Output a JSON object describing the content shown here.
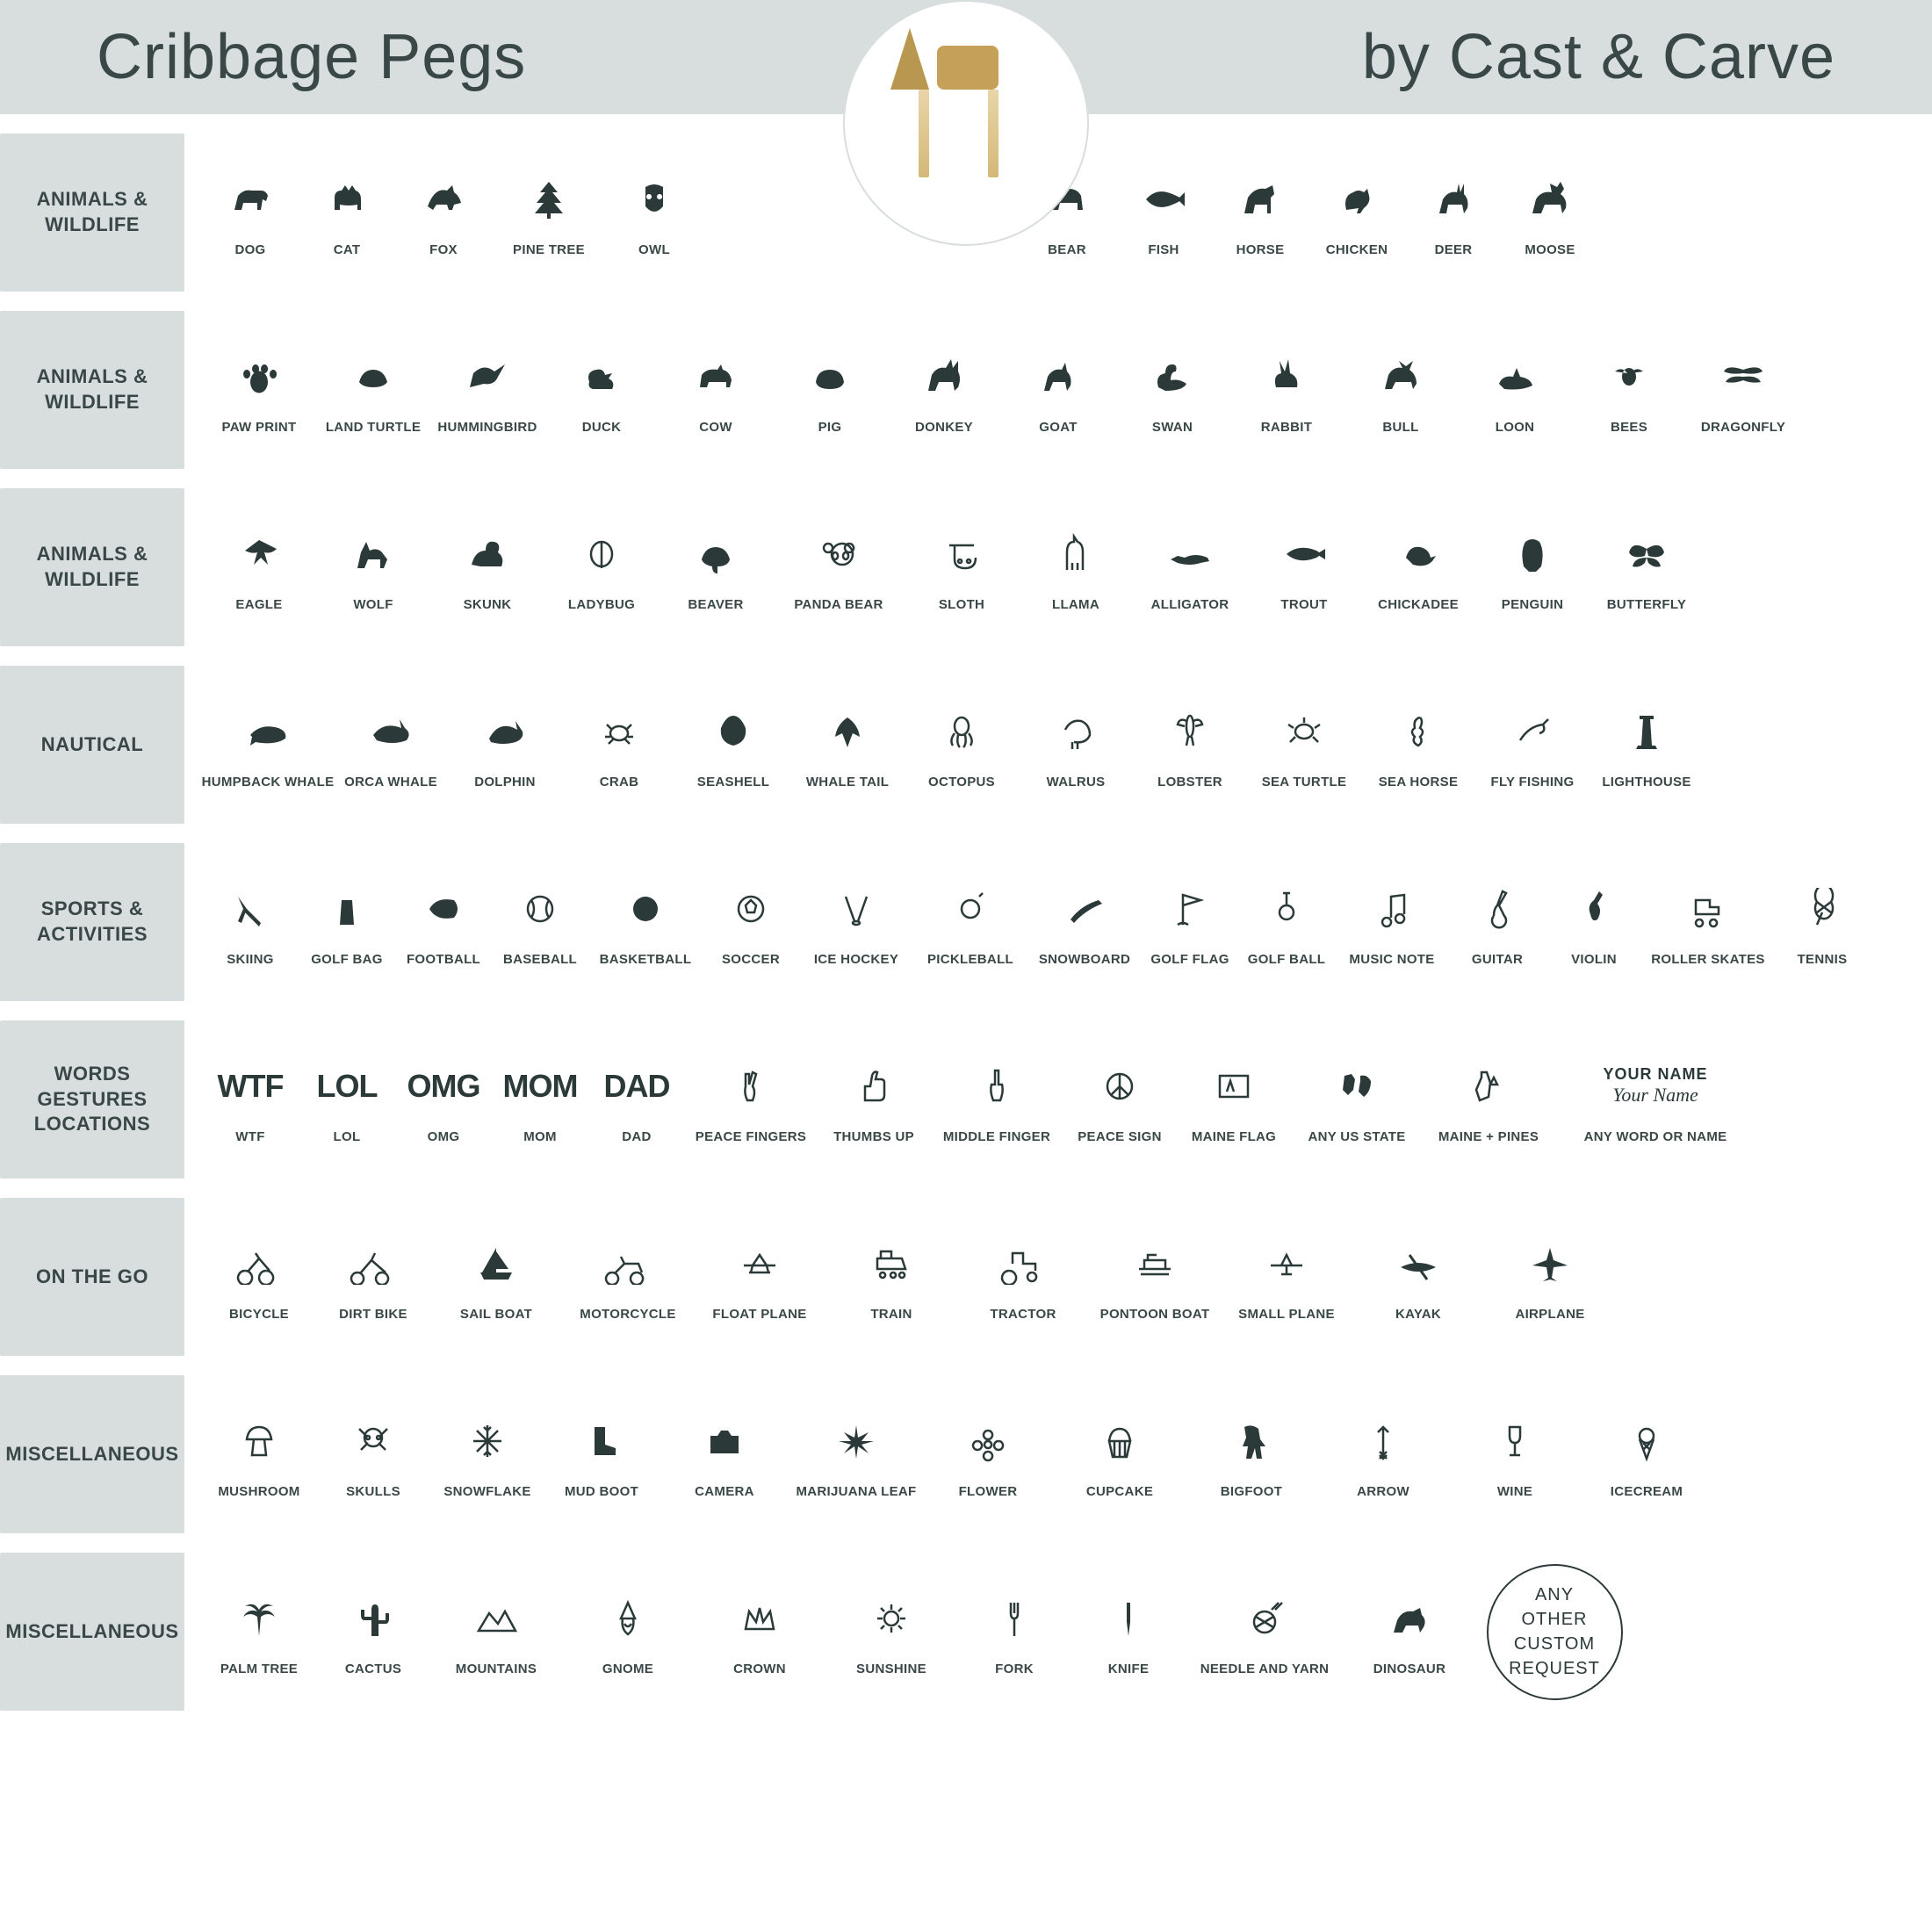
{
  "header": {
    "title": "Cribbage Pegs",
    "subtitle": "by Cast & Carve"
  },
  "colors": {
    "icon": "#2b3939",
    "band": "#d8dddd",
    "text": "#3a4747"
  },
  "rows": [
    {
      "label": "ANIMALS & WILDLIFE",
      "split_gap": true,
      "items_left": [
        {
          "label": "DOG",
          "icon": "dog",
          "w": "w-narrow"
        },
        {
          "label": "CAT",
          "icon": "cat",
          "w": "w-narrow"
        },
        {
          "label": "FOX",
          "icon": "fox",
          "w": "w-narrow"
        },
        {
          "label": "PINE TREE",
          "icon": "pinetree",
          "w": "w-std"
        },
        {
          "label": "OWL",
          "icon": "owl",
          "w": "w-narrow"
        }
      ],
      "items_right": [
        {
          "label": "BEAR",
          "icon": "bear",
          "w": "w-narrow"
        },
        {
          "label": "FISH",
          "icon": "fish",
          "w": "w-narrow"
        },
        {
          "label": "HORSE",
          "icon": "horse",
          "w": "w-narrow"
        },
        {
          "label": "CHICKEN",
          "icon": "chicken",
          "w": "w-narrow"
        },
        {
          "label": "DEER",
          "icon": "deer",
          "w": "w-narrow"
        },
        {
          "label": "MOOSE",
          "icon": "moose",
          "w": "w-narrow"
        }
      ]
    },
    {
      "label": "ANIMALS & WILDLIFE",
      "items": [
        {
          "label": "PAW PRINT",
          "icon": "paw",
          "w": "w-std"
        },
        {
          "label": "LAND TURTLE",
          "icon": "turtle",
          "w": "w-std"
        },
        {
          "label": "HUMMINGBIRD",
          "icon": "hummingbird",
          "w": "w-std"
        },
        {
          "label": "DUCK",
          "icon": "duck",
          "w": "w-std"
        },
        {
          "label": "COW",
          "icon": "cow",
          "w": "w-std"
        },
        {
          "label": "PIG",
          "icon": "pig",
          "w": "w-std"
        },
        {
          "label": "DONKEY",
          "icon": "donkey",
          "w": "w-std"
        },
        {
          "label": "GOAT",
          "icon": "goat",
          "w": "w-std"
        },
        {
          "label": "SWAN",
          "icon": "swan",
          "w": "w-std"
        },
        {
          "label": "RABBIT",
          "icon": "rabbit",
          "w": "w-std"
        },
        {
          "label": "BULL",
          "icon": "bull",
          "w": "w-std"
        },
        {
          "label": "LOON",
          "icon": "loon",
          "w": "w-std"
        },
        {
          "label": "BEES",
          "icon": "bee",
          "w": "w-std"
        },
        {
          "label": "DRAGONFLY",
          "icon": "dragonfly",
          "w": "w-std"
        }
      ]
    },
    {
      "label": "ANIMALS & WILDLIFE",
      "items": [
        {
          "label": "EAGLE",
          "icon": "eagle",
          "w": "w-std"
        },
        {
          "label": "WOLF",
          "icon": "wolf",
          "w": "w-std"
        },
        {
          "label": "SKUNK",
          "icon": "skunk",
          "w": "w-std"
        },
        {
          "label": "LADYBUG",
          "icon": "ladybug",
          "w": "w-std"
        },
        {
          "label": "BEAVER",
          "icon": "beaver",
          "w": "w-std"
        },
        {
          "label": "PANDA BEAR",
          "icon": "panda",
          "w": "w-wide"
        },
        {
          "label": "SLOTH",
          "icon": "sloth",
          "w": "w-std"
        },
        {
          "label": "LLAMA",
          "icon": "llama",
          "w": "w-std"
        },
        {
          "label": "ALLIGATOR",
          "icon": "alligator",
          "w": "w-std"
        },
        {
          "label": "TROUT",
          "icon": "trout",
          "w": "w-std"
        },
        {
          "label": "CHICKADEE",
          "icon": "chickadee",
          "w": "w-std"
        },
        {
          "label": "PENGUIN",
          "icon": "penguin",
          "w": "w-std"
        },
        {
          "label": "BUTTERFLY",
          "icon": "butterfly",
          "w": "w-std"
        }
      ]
    },
    {
      "label": "NAUTICAL",
      "items": [
        {
          "label": "HUMPBACK WHALE",
          "icon": "whale",
          "w": "w-wide"
        },
        {
          "label": "ORCA WHALE",
          "icon": "orca",
          "w": "w-std"
        },
        {
          "label": "DOLPHIN",
          "icon": "dolphin",
          "w": "w-std"
        },
        {
          "label": "CRAB",
          "icon": "crab",
          "w": "w-std"
        },
        {
          "label": "SEASHELL",
          "icon": "shell",
          "w": "w-std"
        },
        {
          "label": "WHALE TAIL",
          "icon": "tail",
          "w": "w-std"
        },
        {
          "label": "OCTOPUS",
          "icon": "octopus",
          "w": "w-std"
        },
        {
          "label": "WALRUS",
          "icon": "walrus",
          "w": "w-std"
        },
        {
          "label": "LOBSTER",
          "icon": "lobster",
          "w": "w-std"
        },
        {
          "label": "SEA TURTLE",
          "icon": "seaturtle",
          "w": "w-std"
        },
        {
          "label": "SEA HORSE",
          "icon": "seahorse",
          "w": "w-std"
        },
        {
          "label": "FLY FISHING",
          "icon": "flyfish",
          "w": "w-std"
        },
        {
          "label": "LIGHTHOUSE",
          "icon": "lighthouse",
          "w": "w-std"
        }
      ]
    },
    {
      "label": "SPORTS & ACTIVITIES",
      "items": [
        {
          "label": "SKIING",
          "icon": "ski",
          "w": "w-narrow"
        },
        {
          "label": "GOLF BAG",
          "icon": "golfbag",
          "w": "w-narrow"
        },
        {
          "label": "FOOTBALL",
          "icon": "football",
          "w": "w-narrow"
        },
        {
          "label": "BASEBALL",
          "icon": "baseball",
          "w": "w-narrow"
        },
        {
          "label": "BASKETBALL",
          "icon": "basketball",
          "w": "w-std"
        },
        {
          "label": "SOCCER",
          "icon": "soccer",
          "w": "w-narrow"
        },
        {
          "label": "ICE HOCKEY",
          "icon": "hockey",
          "w": "w-std"
        },
        {
          "label": "PICKLEBALL",
          "icon": "pickle",
          "w": "w-std"
        },
        {
          "label": "SNOWBOARD",
          "icon": "snowboard",
          "w": "w-std"
        },
        {
          "label": "GOLF FLAG",
          "icon": "golfflag",
          "w": "w-narrow"
        },
        {
          "label": "GOLF BALL",
          "icon": "golfball",
          "w": "w-narrow"
        },
        {
          "label": "MUSIC NOTE",
          "icon": "music",
          "w": "w-std"
        },
        {
          "label": "GUITAR",
          "icon": "guitar",
          "w": "w-narrow"
        },
        {
          "label": "VIOLIN",
          "icon": "violin",
          "w": "w-narrow"
        },
        {
          "label": "ROLLER SKATES",
          "icon": "skates",
          "w": "w-wide"
        },
        {
          "label": "TENNIS",
          "icon": "tennis",
          "w": "w-narrow"
        }
      ]
    },
    {
      "label": "WORDS GESTURES LOCATIONS",
      "items": [
        {
          "label": "WTF",
          "icon": "word",
          "word": "WTF",
          "w": "w-narrow"
        },
        {
          "label": "LOL",
          "icon": "word",
          "word": "LOL",
          "w": "w-narrow"
        },
        {
          "label": "OMG",
          "icon": "word",
          "word": "OMG",
          "w": "w-narrow"
        },
        {
          "label": "MOM",
          "icon": "word",
          "word": "MOM",
          "w": "w-narrow"
        },
        {
          "label": "DAD",
          "icon": "word",
          "word": "DAD",
          "w": "w-narrow"
        },
        {
          "label": "PEACE FINGERS",
          "icon": "peace",
          "w": "w-wide"
        },
        {
          "label": "THUMBS UP",
          "icon": "thumbs",
          "w": "w-std"
        },
        {
          "label": "MIDDLE FINGER",
          "icon": "middle",
          "w": "w-wide"
        },
        {
          "label": "PEACE SIGN",
          "icon": "peacesign",
          "w": "w-std"
        },
        {
          "label": "MAINE FLAG",
          "icon": "maineflag",
          "w": "w-std"
        },
        {
          "label": "ANY US STATE",
          "icon": "usstate",
          "w": "w-wide"
        },
        {
          "label": "MAINE + PINES",
          "icon": "mainepines",
          "w": "w-wide"
        },
        {
          "label": "ANY WORD OR NAME",
          "icon": "yourname",
          "w": "w-xxwide"
        }
      ]
    },
    {
      "label": "ON THE GO",
      "items": [
        {
          "label": "BICYCLE",
          "icon": "bike",
          "w": "w-std"
        },
        {
          "label": "DIRT BIKE",
          "icon": "dirtbike",
          "w": "w-std"
        },
        {
          "label": "SAIL BOAT",
          "icon": "sailboat",
          "w": "w-wide"
        },
        {
          "label": "MOTORCYCLE",
          "icon": "moto",
          "w": "w-wide"
        },
        {
          "label": "FLOAT PLANE",
          "icon": "floatplane",
          "w": "w-wide"
        },
        {
          "label": "TRAIN",
          "icon": "train",
          "w": "w-wide"
        },
        {
          "label": "TRACTOR",
          "icon": "tractor",
          "w": "w-wide"
        },
        {
          "label": "PONTOON BOAT",
          "icon": "pontoon",
          "w": "w-wide"
        },
        {
          "label": "SMALL PLANE",
          "icon": "smallplane",
          "w": "w-wide"
        },
        {
          "label": "KAYAK",
          "icon": "kayak",
          "w": "w-wide"
        },
        {
          "label": "AIRPLANE",
          "icon": "airplane",
          "w": "w-wide"
        }
      ]
    },
    {
      "label": "MISCELLANEOUS",
      "items": [
        {
          "label": "MUSHROOM",
          "icon": "mushroom",
          "w": "w-std"
        },
        {
          "label": "SKULLS",
          "icon": "skull",
          "w": "w-std"
        },
        {
          "label": "SNOWFLAKE",
          "icon": "snowflake",
          "w": "w-std"
        },
        {
          "label": "MUD BOOT",
          "icon": "boot",
          "w": "w-std"
        },
        {
          "label": "CAMERA",
          "icon": "camera",
          "w": "w-wide"
        },
        {
          "label": "MARIJUANA LEAF",
          "icon": "leaf",
          "w": "w-wide"
        },
        {
          "label": "FLOWER",
          "icon": "flower",
          "w": "w-wide"
        },
        {
          "label": "CUPCAKE",
          "icon": "cupcake",
          "w": "w-wide"
        },
        {
          "label": "BIGFOOT",
          "icon": "bigfoot",
          "w": "w-wide"
        },
        {
          "label": "ARROW",
          "icon": "arrow",
          "w": "w-wide"
        },
        {
          "label": "WINE",
          "icon": "wine",
          "w": "w-wide"
        },
        {
          "label": "ICECREAM",
          "icon": "icecream",
          "w": "w-wide"
        }
      ]
    },
    {
      "label": "MISCELLANEOUS",
      "items": [
        {
          "label": "PALM TREE",
          "icon": "palm",
          "w": "w-std"
        },
        {
          "label": "CACTUS",
          "icon": "cactus",
          "w": "w-std"
        },
        {
          "label": "MOUNTAINS",
          "icon": "mountains",
          "w": "w-wide"
        },
        {
          "label": "GNOME",
          "icon": "gnome",
          "w": "w-wide"
        },
        {
          "label": "CROWN",
          "icon": "crown",
          "w": "w-wide"
        },
        {
          "label": "SUNSHINE",
          "icon": "sun",
          "w": "w-wide"
        },
        {
          "label": "FORK",
          "icon": "fork",
          "w": "w-std"
        },
        {
          "label": "KNIFE",
          "icon": "knife",
          "w": "w-std"
        },
        {
          "label": "NEEDLE AND YARN",
          "icon": "yarn",
          "w": "w-xwide"
        },
        {
          "label": "DINOSAUR",
          "icon": "dino",
          "w": "w-wide"
        }
      ],
      "trailing_circle": "ANY OTHER CUSTOM REQUEST"
    }
  ]
}
